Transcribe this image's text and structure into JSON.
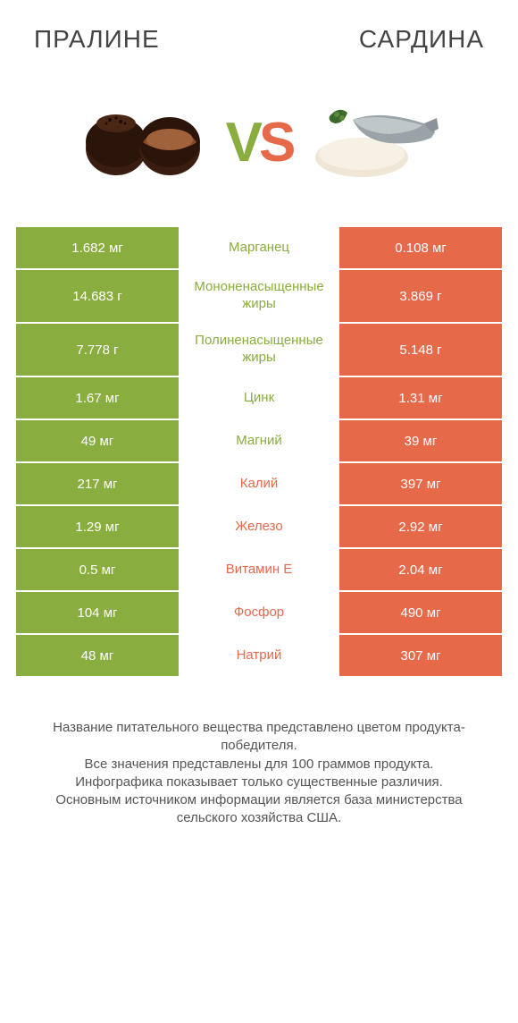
{
  "titles": {
    "left": "ПРАЛИНЕ",
    "right": "САРДИНА"
  },
  "vs": {
    "v": "V",
    "s": "S"
  },
  "colors": {
    "green": "#8aad3f",
    "orange": "#e6694a",
    "white": "#ffffff",
    "text": "#444444",
    "footer": "#555555"
  },
  "rows": [
    {
      "left": "1.682 мг",
      "mid": "Марганец",
      "right": "0.108 мг",
      "winner": "left",
      "tall": false
    },
    {
      "left": "14.683 г",
      "mid": "Мононенасыщенные жиры",
      "right": "3.869 г",
      "winner": "left",
      "tall": true
    },
    {
      "left": "7.778 г",
      "mid": "Полиненасыщенные жиры",
      "right": "5.148 г",
      "winner": "left",
      "tall": true
    },
    {
      "left": "1.67 мг",
      "mid": "Цинк",
      "right": "1.31 мг",
      "winner": "left",
      "tall": false
    },
    {
      "left": "49 мг",
      "mid": "Магний",
      "right": "39 мг",
      "winner": "left",
      "tall": false
    },
    {
      "left": "217 мг",
      "mid": "Калий",
      "right": "397 мг",
      "winner": "right",
      "tall": false
    },
    {
      "left": "1.29 мг",
      "mid": "Железо",
      "right": "2.92 мг",
      "winner": "right",
      "tall": false
    },
    {
      "left": "0.5 мг",
      "mid": "Витамин E",
      "right": "2.04 мг",
      "winner": "right",
      "tall": false
    },
    {
      "left": "104 мг",
      "mid": "Фосфор",
      "right": "490 мг",
      "winner": "right",
      "tall": false
    },
    {
      "left": "48 мг",
      "mid": "Натрий",
      "right": "307 мг",
      "winner": "right",
      "tall": false
    }
  ],
  "footer_lines": [
    "Название питательного вещества представлено цветом продукта-победителя.",
    "Все значения представлены для 100 граммов продукта.",
    "Инфографика показывает только существенные различия.",
    "Основным источником информации является база министерства сельского хозяйства США."
  ]
}
